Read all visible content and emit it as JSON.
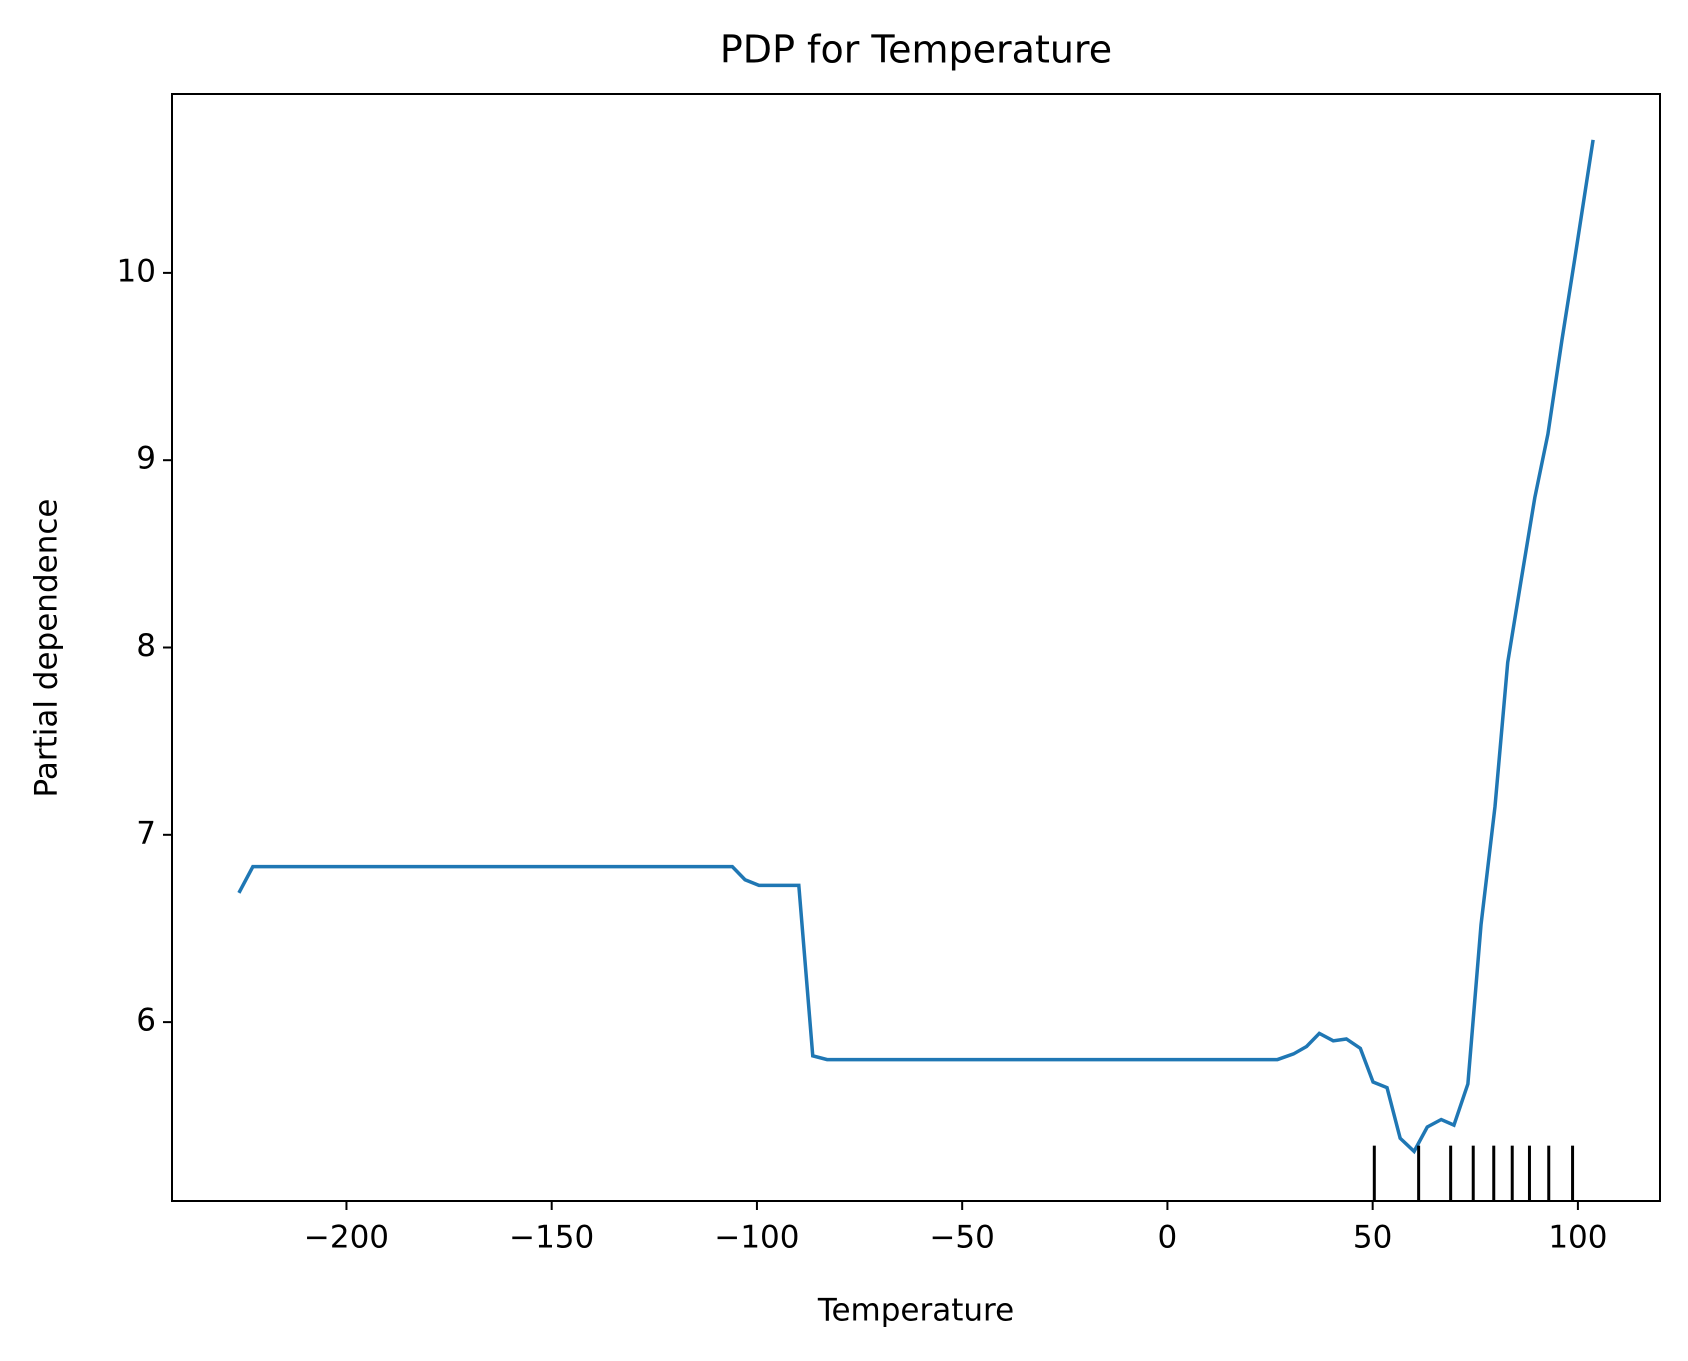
{
  "chart_data": {
    "type": "line",
    "title": "PDP for Temperature",
    "xlabel": "Temperature",
    "ylabel": "Partial dependence",
    "x": [
      -226.2,
      -222.8,
      -106.0,
      -102.9,
      -99.5,
      -89.8,
      -86.4,
      -82.9,
      26.8,
      30.7,
      33.9,
      37.0,
      40.4,
      43.6,
      47.0,
      50.1,
      53.5,
      56.7,
      60.1,
      63.3,
      66.7,
      69.8,
      73.2,
      76.4,
      79.8,
      82.9,
      86.1,
      89.5,
      92.7,
      96.1,
      99.2,
      103.7
    ],
    "series": [
      {
        "color": "#1f77b4",
        "values": [
          6.69,
          6.83,
          6.83,
          6.76,
          6.73,
          6.73,
          5.82,
          5.8,
          5.8,
          5.83,
          5.87,
          5.94,
          5.9,
          5.91,
          5.86,
          5.68,
          5.65,
          5.38,
          5.31,
          5.44,
          5.48,
          5.45,
          5.67,
          6.52,
          7.15,
          7.92,
          8.35,
          8.8,
          9.14,
          9.64,
          10.07,
          10.71
        ]
      }
    ],
    "deciles": [
      50.4,
      61.2,
      69.0,
      74.5,
      79.5,
      84.0,
      88.2,
      92.9,
      98.7
    ],
    "xlim": [
      -242.5,
      120
    ],
    "ylim": [
      5.045,
      10.955
    ],
    "xticks": [
      {
        "value": -200,
        "label": "−200"
      },
      {
        "value": -150,
        "label": "−150"
      },
      {
        "value": -100,
        "label": "−100"
      },
      {
        "value": -50,
        "label": "−50"
      },
      0,
      50,
      100
    ],
    "yticks": [
      6,
      7,
      8,
      9,
      10
    ]
  }
}
